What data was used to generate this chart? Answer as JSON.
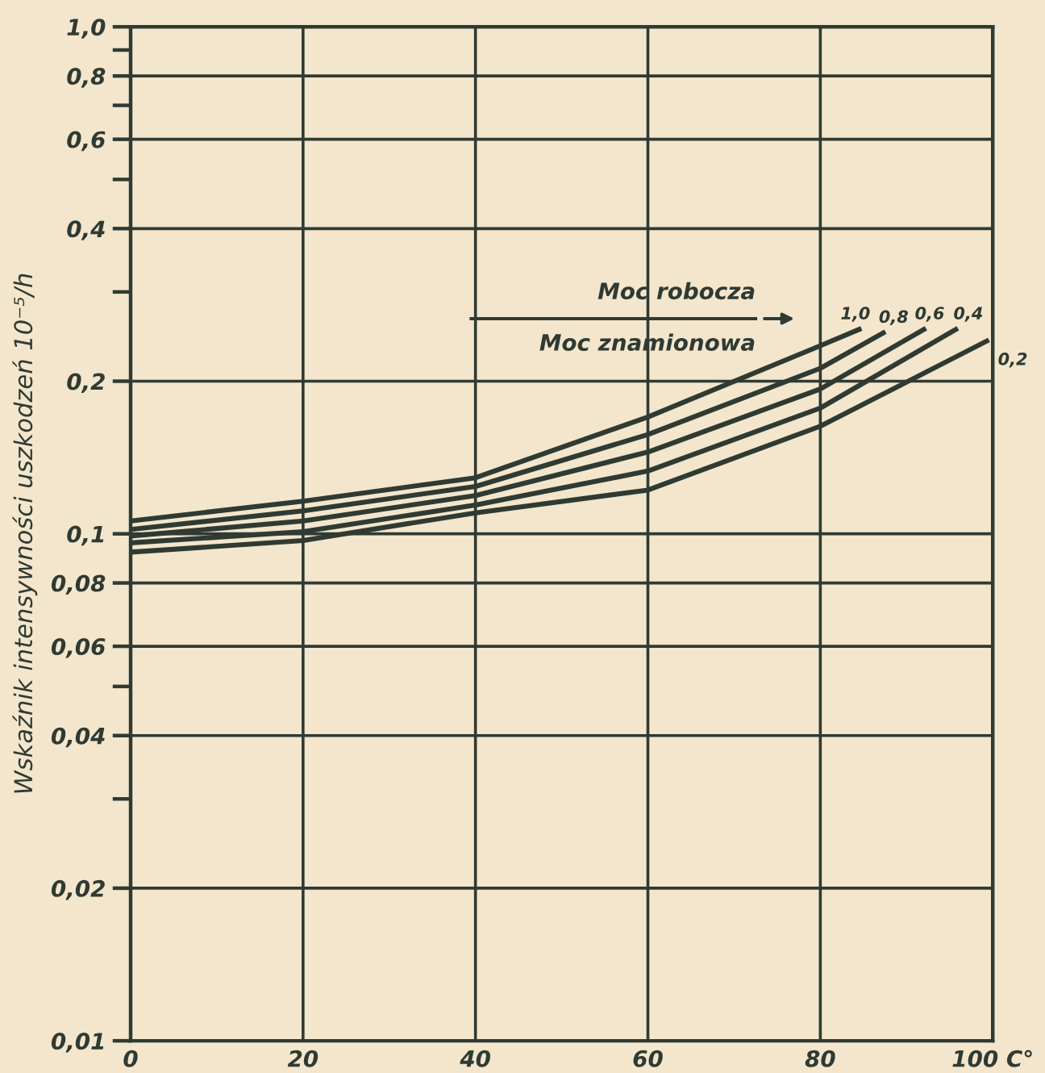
{
  "chart_data": {
    "type": "line",
    "ylabel": "Wskaźnik intensywności uszkodzeń 10⁻⁵/h",
    "annotations": [
      "Moc robocza",
      "Moc znamionowa"
    ],
    "log": "y",
    "grid": true,
    "legend": false,
    "marker": "none",
    "line_style": "solid",
    "xlim": [
      0,
      100
    ],
    "xticks": [
      0,
      20,
      40,
      60,
      80,
      {
        "value": 100,
        "label": "100 C°"
      }
    ],
    "ylim": [
      0.01,
      1.0
    ],
    "yticks": [
      {
        "value": 0.01,
        "label": "0,01"
      },
      {
        "value": 0.02,
        "label": "0,02"
      },
      {
        "value": 0.03,
        "label": null
      },
      {
        "value": 0.04,
        "label": "0,04"
      },
      {
        "value": 0.05,
        "label": null
      },
      {
        "value": 0.06,
        "label": "0,06"
      },
      {
        "value": 0.08,
        "label": "0,08"
      },
      {
        "value": 0.1,
        "label": "0,1"
      },
      {
        "value": 0.2,
        "label": "0,2"
      },
      {
        "value": 0.3,
        "label": null
      },
      {
        "value": 0.4,
        "label": "0,4"
      },
      {
        "value": 0.5,
        "label": null
      },
      {
        "value": 0.6,
        "label": "0,6"
      },
      {
        "value": 0.7,
        "label": null
      },
      {
        "value": 0.8,
        "label": "0,8"
      },
      {
        "value": 0.9,
        "label": null
      },
      {
        "value": 1.0,
        "label": "1,0"
      }
    ],
    "series": [
      {
        "name": "1,0",
        "color": "#2f3a33",
        "x": [
          0,
          20,
          40,
          60,
          80,
          84.5
        ],
        "values": [
          0.106,
          0.116,
          0.129,
          0.17,
          0.235,
          0.253
        ]
      },
      {
        "name": "0,8",
        "color": "#2f3a33",
        "x": [
          0,
          20,
          40,
          60,
          80,
          87.3
        ],
        "values": [
          0.102,
          0.111,
          0.124,
          0.157,
          0.212,
          0.249
        ]
      },
      {
        "name": "0,6",
        "color": "#2f3a33",
        "x": [
          0,
          20,
          40,
          60,
          80,
          92
        ],
        "values": [
          0.099,
          0.106,
          0.119,
          0.145,
          0.193,
          0.253
        ]
      },
      {
        "name": "0,4",
        "color": "#2f3a33",
        "x": [
          0,
          20,
          40,
          60,
          80,
          95.7
        ],
        "values": [
          0.096,
          0.101,
          0.114,
          0.133,
          0.177,
          0.253
        ]
      },
      {
        "name": "0,2",
        "color": "#2f3a33",
        "x": [
          0,
          20,
          40,
          60,
          80,
          99.3
        ],
        "values": [
          0.092,
          0.097,
          0.11,
          0.122,
          0.163,
          0.24
        ]
      }
    ]
  }
}
